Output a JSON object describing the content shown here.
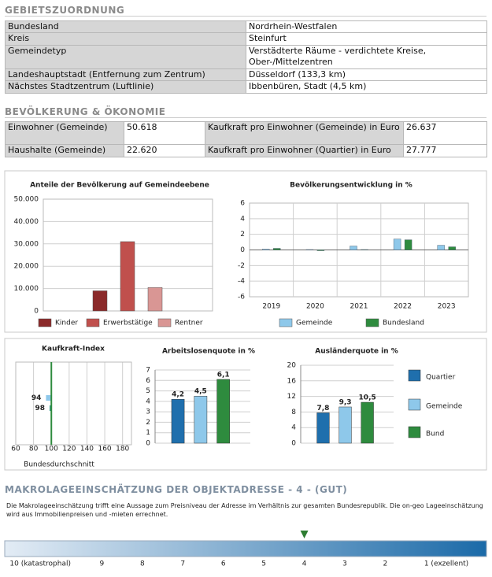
{
  "gebiet": {
    "title": "GEBIETSZUORDNUNG",
    "rows": [
      [
        "Bundesland",
        "Nordrhein-Westfalen"
      ],
      [
        "Kreis",
        "Steinfurt"
      ],
      [
        "Gemeindetyp",
        "Verstädterte Räume - verdichtete Kreise, Ober-/Mittelzentren"
      ],
      [
        "Landeshauptstadt (Entfernung zum Zentrum)",
        "Düsseldorf (133,3 km)"
      ],
      [
        "Nächstes Stadtzentrum (Luftlinie)",
        "Ibbenbüren, Stadt (4,5 km)"
      ]
    ]
  },
  "bevoelkerung": {
    "title": "BEVÖLKERUNG & ÖKONOMIE",
    "rows": [
      [
        "Einwohner (Gemeinde)",
        "50.618",
        "Kaufkraft pro Einwohner (Gemeinde) in Euro",
        "26.637"
      ],
      [
        "Haushalte (Gemeinde)",
        "22.620",
        "Kaufkraft pro Einwohner (Quartier) in Euro",
        "27.777"
      ]
    ]
  },
  "chart_data": [
    {
      "type": "bar",
      "title": "Anteile der Bevölkerung auf Gemeindeebene",
      "ylim": [
        0,
        50000
      ],
      "yticks": [
        0,
        {
          "value": 10000,
          "label": "10.000"
        },
        {
          "value": 20000,
          "label": "20.000"
        },
        {
          "value": 30000,
          "label": "30.000"
        },
        {
          "value": 40000,
          "label": "40.000"
        },
        {
          "value": 50000,
          "label": "50.000"
        }
      ],
      "grid": true,
      "series": [
        {
          "name": "Kinder",
          "color": "#8b2a2a",
          "values": [
            9000
          ]
        },
        {
          "name": "Erwerbstätige",
          "color": "#c0504d",
          "values": [
            31000
          ]
        },
        {
          "name": "Rentner",
          "color": "#d99694",
          "values": [
            10500
          ]
        }
      ]
    },
    {
      "type": "grouped-bar",
      "title": "Bevölkerungsentwicklung in %",
      "categories": [
        "2019",
        "2020",
        "2021",
        "2022",
        "2023"
      ],
      "ylim": [
        -6,
        6
      ],
      "yticks": [
        -6,
        -4,
        -2,
        0,
        2,
        4,
        6
      ],
      "grid": true,
      "series": [
        {
          "name": "Gemeinde",
          "color": "#8ec8ea",
          "values": [
            0.1,
            0.05,
            0.5,
            1.4,
            0.6
          ]
        },
        {
          "name": "Bundesland",
          "color": "#2e8b3e",
          "values": [
            0.2,
            -0.1,
            0.05,
            1.3,
            0.4
          ]
        }
      ]
    },
    {
      "type": "deviation-bar",
      "title": "Kaufkraft-Index",
      "xlim": [
        60,
        190
      ],
      "xticks": [
        60,
        80,
        100,
        120,
        140,
        160,
        180
      ],
      "values": [
        94,
        98
      ],
      "colors": [
        "#8ec8ea",
        "#3a9a8a"
      ],
      "reference": {
        "value": 100,
        "label": "Bundesdurchschnitt",
        "color": "#2e8b3e"
      }
    },
    {
      "type": "column",
      "title": "Arbeitslosenquote in %",
      "ylim": [
        0,
        7
      ],
      "yticks": [
        0,
        1,
        2,
        3,
        4,
        5,
        6,
        7
      ],
      "values": [
        4.2,
        4.5,
        6.1
      ],
      "value_labels": [
        "4,2",
        "4,5",
        "6,1"
      ],
      "colors": [
        "#1f6fad",
        "#8ec8ea",
        "#2e8b3e"
      ]
    },
    {
      "type": "column",
      "title": "Ausländerquote in %",
      "ylim": [
        0,
        20
      ],
      "yticks": [
        0,
        4,
        8,
        12,
        16,
        20
      ],
      "values": [
        7.8,
        9.3,
        10.5
      ],
      "value_labels": [
        "7,8",
        "9,3",
        "10,5"
      ],
      "colors": [
        "#1f6fad",
        "#8ec8ea",
        "#2e8b3e"
      ],
      "legend": [
        "Quartier",
        "Gemeinde",
        "Bund"
      ]
    }
  ],
  "makro": {
    "title": "MAKROLAGEEINSCHÄTZUNG DER OBJEKTADRESSE - 4 - (GUT)",
    "text": "Die Makrolageeinschätzung trifft eine Aussage zum  Preisniveau der Adresse im Verhältnis zur gesamten Bundesrepublik. Die on-geo Lageeinschätzung wird aus Immobilienpreisen und -mieten errechnet.",
    "xlim": [
      11.4,
      -0.5
    ],
    "xticks": [
      {
        "value": 10,
        "label": "10 (katastrophal)"
      },
      9,
      8,
      7,
      6,
      5,
      4,
      3,
      2,
      {
        "value": 1,
        "label": "1 (exzellent)"
      }
    ],
    "marker": 4,
    "marker_color": "#2e7d32"
  }
}
